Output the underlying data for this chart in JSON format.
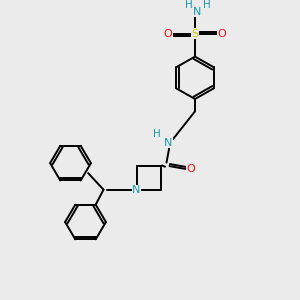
{
  "background_color": "#ebebeb",
  "atom_colors": {
    "C": "#000000",
    "N": "#1a9aaa",
    "O": "#ee1111",
    "S": "#cccc00",
    "H": "#1a9aaa"
  },
  "figsize": [
    3.0,
    3.0
  ],
  "dpi": 100,
  "lw": 1.4,
  "fontsize": 7.5
}
